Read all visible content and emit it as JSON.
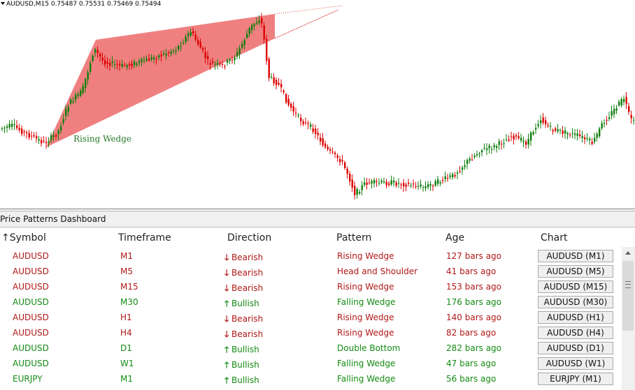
{
  "chart": {
    "title": "AUDUSD,M15  0.75487 0.75531 0.75469 0.75494",
    "pattern_label": "Rising Wedge",
    "colors": {
      "bull": "#0e7f0e",
      "bear": "#dd0000",
      "wedge": "#f08080",
      "label": "#2a7a2a"
    }
  },
  "dashboard": {
    "title": "Price Patterns Dashboard",
    "headers": {
      "symbol": "Symbol",
      "timeframe": "Timeframe",
      "direction": "Direction",
      "pattern": "Pattern",
      "age": "Age",
      "chart": "Chart"
    },
    "sort_arrow": "↑",
    "colors": {
      "bearish": "#b01818",
      "bullish": "#138a13"
    },
    "rows": [
      {
        "symbol": "AUDUSD",
        "timeframe": "M1",
        "arrow": "🡓",
        "direction": "Bearish",
        "pattern": "Rising Wedge",
        "age": "127 bars ago",
        "chart": "AUDUSD (M1)",
        "bias": "bearish"
      },
      {
        "symbol": "AUDUSD",
        "timeframe": "M5",
        "arrow": "🡓",
        "direction": "Bearish",
        "pattern": "Head and Shoulder",
        "age": "41 bars ago",
        "chart": "AUDUSD (M5)",
        "bias": "bearish"
      },
      {
        "symbol": "AUDUSD",
        "timeframe": "M15",
        "arrow": "🡓",
        "direction": "Bearish",
        "pattern": "Rising Wedge",
        "age": "153 bars ago",
        "chart": "AUDUSD (M15)",
        "bias": "bearish"
      },
      {
        "symbol": "AUDUSD",
        "timeframe": "M30",
        "arrow": "🡑",
        "direction": "Bullish",
        "pattern": "Falling Wedge",
        "age": "176 bars ago",
        "chart": "AUDUSD (M30)",
        "bias": "bullish"
      },
      {
        "symbol": "AUDUSD",
        "timeframe": "H1",
        "arrow": "🡓",
        "direction": "Bearish",
        "pattern": "Rising Wedge",
        "age": "140 bars ago",
        "chart": "AUDUSD (H1)",
        "bias": "bearish"
      },
      {
        "symbol": "AUDUSD",
        "timeframe": "H4",
        "arrow": "🡓",
        "direction": "Bearish",
        "pattern": "Rising Wedge",
        "age": "82 bars ago",
        "chart": "AUDUSD (H4)",
        "bias": "bearish"
      },
      {
        "symbol": "AUDUSD",
        "timeframe": "D1",
        "arrow": "🡑",
        "direction": "Bullish",
        "pattern": "Double Bottom",
        "age": "282 bars ago",
        "chart": "AUDUSD (D1)",
        "bias": "bullish"
      },
      {
        "symbol": "AUDUSD",
        "timeframe": "W1",
        "arrow": "🡑",
        "direction": "Bullish",
        "pattern": "Falling Wedge",
        "age": "47 bars ago",
        "chart": "AUDUSD (W1)",
        "bias": "bullish"
      },
      {
        "symbol": "EURJPY",
        "timeframe": "M1",
        "arrow": "🡑",
        "direction": "Bullish",
        "pattern": "Falling Wedge",
        "age": "56 bars ago",
        "chart": "EURJPY (M1)",
        "bias": "bullish"
      }
    ]
  }
}
